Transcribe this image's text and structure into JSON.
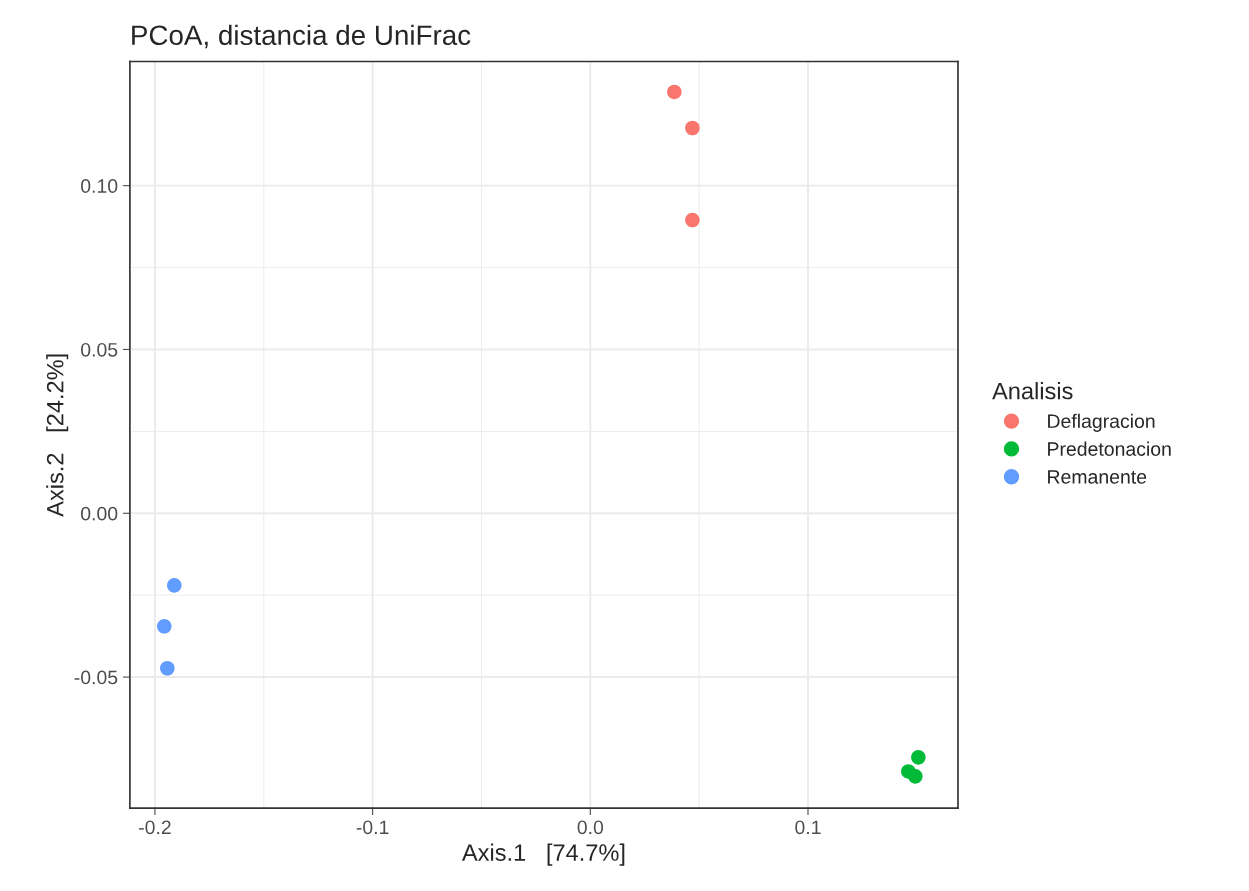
{
  "chart_data": {
    "type": "scatter",
    "title": "PCoA, distancia de UniFrac",
    "xlabel": "Axis.1   [74.7%]",
    "ylabel": "Axis.2   [24.2%]",
    "legend_title": "Analisis",
    "series": [
      {
        "name": "Deflagracion",
        "color": "#f8766d",
        "x": [
          0.0386,
          0.0469,
          0.0469
        ],
        "values": [
          0.1286,
          0.1176,
          0.0895
        ]
      },
      {
        "name": "Predetonacion",
        "color": "#00ba38",
        "x": [
          0.1507,
          0.1461,
          0.1493
        ],
        "values": [
          -0.0745,
          -0.0788,
          -0.0803
        ]
      },
      {
        "name": "Remanente",
        "color": "#619cff",
        "x": [
          -0.1911,
          -0.1957,
          -0.1943
        ],
        "values": [
          -0.022,
          -0.0345,
          -0.0473
        ]
      }
    ],
    "xlim": [
      -0.2115,
      0.1689
    ],
    "ylim": [
      -0.09,
      0.1379
    ],
    "xticks": [
      {
        "value": -0.2,
        "label": "-0.2"
      },
      {
        "value": -0.1,
        "label": "-0.1"
      },
      {
        "value": 0.0,
        "label": "0.0"
      },
      {
        "value": 0.1,
        "label": "0.1"
      }
    ],
    "yticks": [
      {
        "value": -0.05,
        "label": "-0.05"
      },
      {
        "value": 0.0,
        "label": "0.00"
      },
      {
        "value": 0.05,
        "label": "0.05"
      },
      {
        "value": 0.1,
        "label": "0.10"
      }
    ],
    "grid": true,
    "legend": "right",
    "marker": "circle"
  }
}
